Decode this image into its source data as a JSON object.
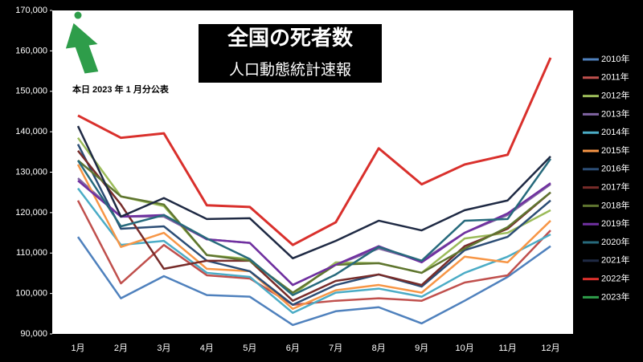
{
  "chart_data": {
    "type": "line",
    "title": "全国の死者数",
    "subtitle": "人口動態統計速報",
    "annotation": "本日 2023 年 1 月分公表",
    "categories": [
      "1月",
      "2月",
      "3月",
      "4月",
      "5月",
      "6月",
      "7月",
      "8月",
      "9月",
      "10月",
      "11月",
      "12月"
    ],
    "ylim": [
      90000,
      170000
    ],
    "yticks": [
      {
        "value": 90000,
        "label": "90,000"
      },
      {
        "value": 100000,
        "label": "100,000"
      },
      {
        "value": 110000,
        "label": "110,000"
      },
      {
        "value": 120000,
        "label": "120,000"
      },
      {
        "value": 130000,
        "label": "130,000"
      },
      {
        "value": 140000,
        "label": "140,000"
      },
      {
        "value": 150000,
        "label": "150,000"
      },
      {
        "value": 160000,
        "label": "160,000"
      },
      {
        "value": 170000,
        "label": "170,000"
      }
    ],
    "grid": false,
    "legend": "right",
    "series": [
      {
        "name": "2010年",
        "color": "#4f81bd",
        "values": [
          114000,
          98800,
          104300,
          99600,
          99200,
          92200,
          95600,
          96600,
          92600,
          98200,
          104100,
          111700
        ]
      },
      {
        "name": "2011年",
        "color": "#c0504d",
        "values": [
          123000,
          102500,
          112000,
          104500,
          103700,
          97200,
          98200,
          98800,
          98200,
          102700,
          104500,
          115600
        ]
      },
      {
        "name": "2012年",
        "color": "#9bbb59",
        "values": [
          138500,
          124000,
          121600,
          109500,
          108500,
          99600,
          107700,
          107500,
          105100,
          113600,
          115000,
          120600
        ]
      },
      {
        "name": "2013年",
        "color": "#8064a2",
        "values": [
          128500,
          119000,
          119000,
          113400,
          112500,
          102100,
          107100,
          111100,
          108100,
          115000,
          119400,
          127000
        ]
      },
      {
        "name": "2014年",
        "color": "#4bacc6",
        "values": [
          126000,
          112000,
          113000,
          105100,
          104100,
          95200,
          100200,
          101200,
          99200,
          105100,
          109100,
          114600
        ]
      },
      {
        "name": "2015年",
        "color": "#f79646",
        "values": [
          131900,
          111500,
          115000,
          106100,
          105500,
          96200,
          100800,
          102100,
          100200,
          109100,
          107700,
          118000
        ]
      },
      {
        "name": "2016年",
        "color": "#2c4d75",
        "values": [
          136900,
          116000,
          116600,
          108100,
          105500,
          97200,
          102100,
          104700,
          101700,
          110700,
          114000,
          123000
        ]
      },
      {
        "name": "2017年",
        "color": "#772c2a",
        "values": [
          135300,
          122000,
          106100,
          108100,
          108100,
          98200,
          103100,
          104700,
          102100,
          111700,
          116000,
          125000
        ]
      },
      {
        "name": "2018年",
        "color": "#5f7530",
        "values": [
          132900,
          124000,
          122000,
          109500,
          108100,
          100200,
          107100,
          107500,
          105100,
          111100,
          116400,
          125000
        ]
      },
      {
        "name": "2019年",
        "color": "#7030a0",
        "values": [
          127900,
          119000,
          119400,
          113400,
          112500,
          102100,
          107100,
          111700,
          107700,
          115000,
          119800,
          127300
        ]
      },
      {
        "name": "2020年",
        "color": "#276a7c",
        "values": [
          132900,
          116600,
          119400,
          113600,
          108500,
          99600,
          104700,
          111500,
          108100,
          118000,
          118400,
          133300
        ]
      },
      {
        "name": "2021年",
        "color": "#1f2a44",
        "values": [
          141400,
          119000,
          123600,
          118400,
          118600,
          108700,
          113000,
          118000,
          115600,
          120600,
          123000,
          133900
        ]
      },
      {
        "name": "2022年",
        "color": "#d9302c",
        "values": [
          144000,
          138500,
          139600,
          121800,
          121400,
          112000,
          117600,
          135900,
          127000,
          131900,
          134300,
          158300
        ]
      },
      {
        "name": "2023年",
        "color": "#2e9d4a",
        "values": [
          168800,
          null,
          null,
          null,
          null,
          null,
          null,
          null,
          null,
          null,
          null,
          null
        ]
      }
    ]
  }
}
